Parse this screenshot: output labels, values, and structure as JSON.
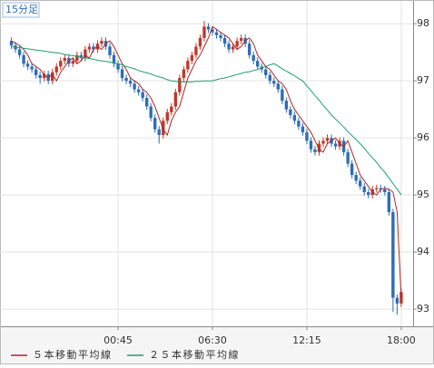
{
  "chart_data": {
    "type": "candlestick",
    "title": "15分足",
    "open": [
      97.7,
      97.62,
      97.55,
      97.45,
      97.3,
      97.25,
      97.2,
      97.1,
      97.05,
      97.12,
      97.0,
      97.15,
      97.25,
      97.35,
      97.4,
      97.3,
      97.35,
      97.45,
      97.4,
      97.55,
      97.6,
      97.55,
      97.65,
      97.7,
      97.6,
      97.45,
      97.3,
      97.2,
      97.05,
      97.0,
      96.95,
      96.85,
      96.8,
      96.7,
      96.55,
      96.35,
      96.15,
      96.05,
      96.3,
      96.45,
      96.55,
      96.8,
      97.05,
      97.2,
      97.35,
      97.45,
      97.6,
      97.75,
      97.95,
      97.9,
      97.85,
      97.8,
      97.75,
      97.65,
      97.55,
      97.6,
      97.7,
      97.75,
      97.65,
      97.45,
      97.35,
      97.25,
      97.2,
      97.1,
      97.0,
      96.95,
      96.85,
      96.65,
      96.5,
      96.4,
      96.3,
      96.2,
      96.1,
      95.95,
      95.8,
      95.75,
      95.9,
      95.95,
      96.0,
      95.9,
      95.85,
      95.95,
      95.75,
      95.55,
      95.35,
      95.25,
      95.15,
      95.05,
      95.0,
      95.1,
      95.12,
      95.1,
      95.05,
      94.7,
      93.2,
      93.1
    ],
    "high": [
      97.76,
      97.68,
      97.61,
      97.51,
      97.36,
      97.31,
      97.26,
      97.16,
      97.18,
      97.18,
      97.21,
      97.31,
      97.41,
      97.46,
      97.46,
      97.41,
      97.51,
      97.51,
      97.61,
      97.66,
      97.66,
      97.71,
      97.76,
      97.76,
      97.66,
      97.51,
      97.36,
      97.26,
      97.11,
      97.06,
      97.01,
      96.91,
      96.86,
      96.76,
      96.61,
      96.41,
      96.21,
      96.36,
      96.51,
      96.61,
      96.86,
      97.11,
      97.26,
      97.41,
      97.51,
      97.66,
      97.81,
      98.05,
      98.01,
      97.96,
      97.91,
      97.86,
      97.81,
      97.71,
      97.66,
      97.76,
      97.81,
      97.81,
      97.71,
      97.51,
      97.41,
      97.31,
      97.26,
      97.16,
      97.06,
      97.01,
      96.91,
      96.71,
      96.56,
      96.46,
      96.36,
      96.26,
      96.16,
      96.01,
      95.86,
      95.96,
      96.01,
      96.06,
      96.06,
      95.96,
      96.01,
      96.01,
      95.81,
      95.61,
      95.41,
      95.31,
      95.21,
      95.11,
      95.16,
      95.18,
      95.18,
      95.16,
      95.11,
      94.76,
      93.26,
      93.36
    ],
    "low": [
      97.56,
      97.49,
      97.39,
      97.24,
      97.19,
      97.14,
      97.04,
      96.95,
      96.99,
      96.94,
      96.94,
      97.09,
      97.19,
      97.29,
      97.24,
      97.24,
      97.29,
      97.34,
      97.34,
      97.49,
      97.49,
      97.49,
      97.59,
      97.54,
      97.39,
      97.24,
      97.14,
      96.99,
      96.94,
      96.89,
      96.79,
      96.74,
      96.64,
      96.49,
      96.29,
      96.09,
      95.9,
      95.99,
      96.24,
      96.39,
      96.49,
      96.74,
      96.99,
      97.14,
      97.29,
      97.39,
      97.54,
      97.69,
      97.84,
      97.79,
      97.74,
      97.69,
      97.59,
      97.49,
      97.49,
      97.54,
      97.64,
      97.59,
      97.39,
      97.29,
      97.19,
      97.14,
      97.04,
      96.94,
      96.89,
      96.79,
      96.59,
      96.44,
      96.34,
      96.24,
      96.14,
      96.04,
      95.89,
      95.74,
      95.69,
      95.69,
      95.84,
      95.89,
      95.84,
      95.79,
      95.79,
      95.69,
      95.49,
      95.29,
      95.19,
      95.09,
      94.99,
      94.94,
      94.94,
      95.04,
      95.04,
      94.99,
      94.64,
      92.95,
      92.9,
      93.04
    ],
    "close": [
      97.62,
      97.55,
      97.45,
      97.3,
      97.25,
      97.2,
      97.1,
      97.05,
      97.12,
      97.0,
      97.15,
      97.25,
      97.35,
      97.4,
      97.3,
      97.35,
      97.45,
      97.4,
      97.55,
      97.6,
      97.55,
      97.65,
      97.7,
      97.6,
      97.45,
      97.3,
      97.2,
      97.05,
      97.0,
      96.95,
      96.85,
      96.8,
      96.7,
      96.55,
      96.35,
      96.15,
      96.05,
      96.3,
      96.45,
      96.55,
      96.8,
      97.05,
      97.2,
      97.35,
      97.45,
      97.6,
      97.75,
      97.95,
      97.9,
      97.85,
      97.8,
      97.75,
      97.65,
      97.55,
      97.6,
      97.7,
      97.75,
      97.65,
      97.45,
      97.35,
      97.25,
      97.2,
      97.1,
      97.0,
      96.95,
      96.85,
      96.65,
      96.5,
      96.4,
      96.3,
      96.2,
      96.1,
      95.95,
      95.8,
      95.75,
      95.9,
      95.95,
      96.0,
      95.9,
      95.85,
      95.95,
      95.75,
      95.55,
      95.35,
      95.25,
      95.15,
      95.05,
      95.0,
      95.1,
      95.12,
      95.1,
      95.05,
      94.7,
      93.2,
      93.1,
      93.3
    ],
    "up_color": "#c0392b",
    "down_color": "#2f6db5",
    "series": [
      {
        "name": "５本移動平均線",
        "color": "#a52a2a",
        "values": [
          97.7,
          97.66,
          97.62,
          97.55,
          97.45,
          97.3,
          97.25,
          97.2,
          97.1,
          97.05,
          97.12,
          97.0,
          97.15,
          97.25,
          97.35,
          97.4,
          97.3,
          97.35,
          97.45,
          97.4,
          97.55,
          97.6,
          97.55,
          97.65,
          97.7,
          97.6,
          97.45,
          97.3,
          97.2,
          97.05,
          97.0,
          96.95,
          96.85,
          96.8,
          96.7,
          96.55,
          96.35,
          96.15,
          96.05,
          96.3,
          96.45,
          96.55,
          96.8,
          97.05,
          97.2,
          97.35,
          97.45,
          97.6,
          97.75,
          97.95,
          97.9,
          97.85,
          97.8,
          97.75,
          97.65,
          97.55,
          97.6,
          97.7,
          97.75,
          97.65,
          97.45,
          97.35,
          97.25,
          97.2,
          97.1,
          97.0,
          96.95,
          96.85,
          96.65,
          96.5,
          96.4,
          96.3,
          96.2,
          96.1,
          95.95,
          95.8,
          95.75,
          95.9,
          95.95,
          96.0,
          95.9,
          95.85,
          95.95,
          95.75,
          95.55,
          95.35,
          95.25,
          95.15,
          95.05,
          95.0,
          95.1,
          95.12,
          95.1,
          95.05,
          94.7,
          93.2
        ]
      },
      {
        "name": "２５本移動平均線",
        "color": "#1f9e6e",
        "values": [
          97.6,
          97.59,
          97.58,
          97.57,
          97.56,
          97.55,
          97.54,
          97.53,
          97.52,
          97.51,
          97.5,
          97.49,
          97.48,
          97.46,
          97.45,
          97.44,
          97.43,
          97.41,
          97.4,
          97.39,
          97.38,
          97.36,
          97.35,
          97.34,
          97.33,
          97.31,
          97.3,
          97.28,
          97.25,
          97.23,
          97.21,
          97.18,
          97.16,
          97.14,
          97.12,
          97.09,
          97.07,
          97.05,
          97.02,
          97.0,
          96.99,
          96.98,
          96.98,
          96.98,
          96.98,
          96.99,
          96.99,
          97.0,
          97.0,
          97.0,
          97.02,
          97.04,
          97.05,
          97.07,
          97.09,
          97.11,
          97.13,
          97.15,
          97.16,
          97.18,
          97.2,
          97.23,
          97.25,
          97.28,
          97.3,
          97.26,
          97.21,
          97.17,
          97.13,
          97.09,
          97.04,
          97.0,
          96.91,
          96.83,
          96.74,
          96.66,
          96.57,
          96.49,
          96.4,
          96.33,
          96.26,
          96.19,
          96.11,
          96.04,
          95.97,
          95.9,
          95.82,
          95.73,
          95.65,
          95.57,
          95.48,
          95.4,
          95.3,
          95.2,
          95.1,
          95.0
        ]
      }
    ],
    "xlim": [
      -2.77,
      97.9
    ],
    "xticks": [
      {
        "value": 26,
        "label": "00:45"
      },
      {
        "value": 49,
        "label": "06:30"
      },
      {
        "value": 72,
        "label": "12:15"
      },
      {
        "value": 95,
        "label": "18:00"
      }
    ],
    "ylim": [
      92.7,
      98.4
    ],
    "yticks": [
      93,
      94,
      95,
      96,
      97,
      98
    ],
    "grid": true
  }
}
